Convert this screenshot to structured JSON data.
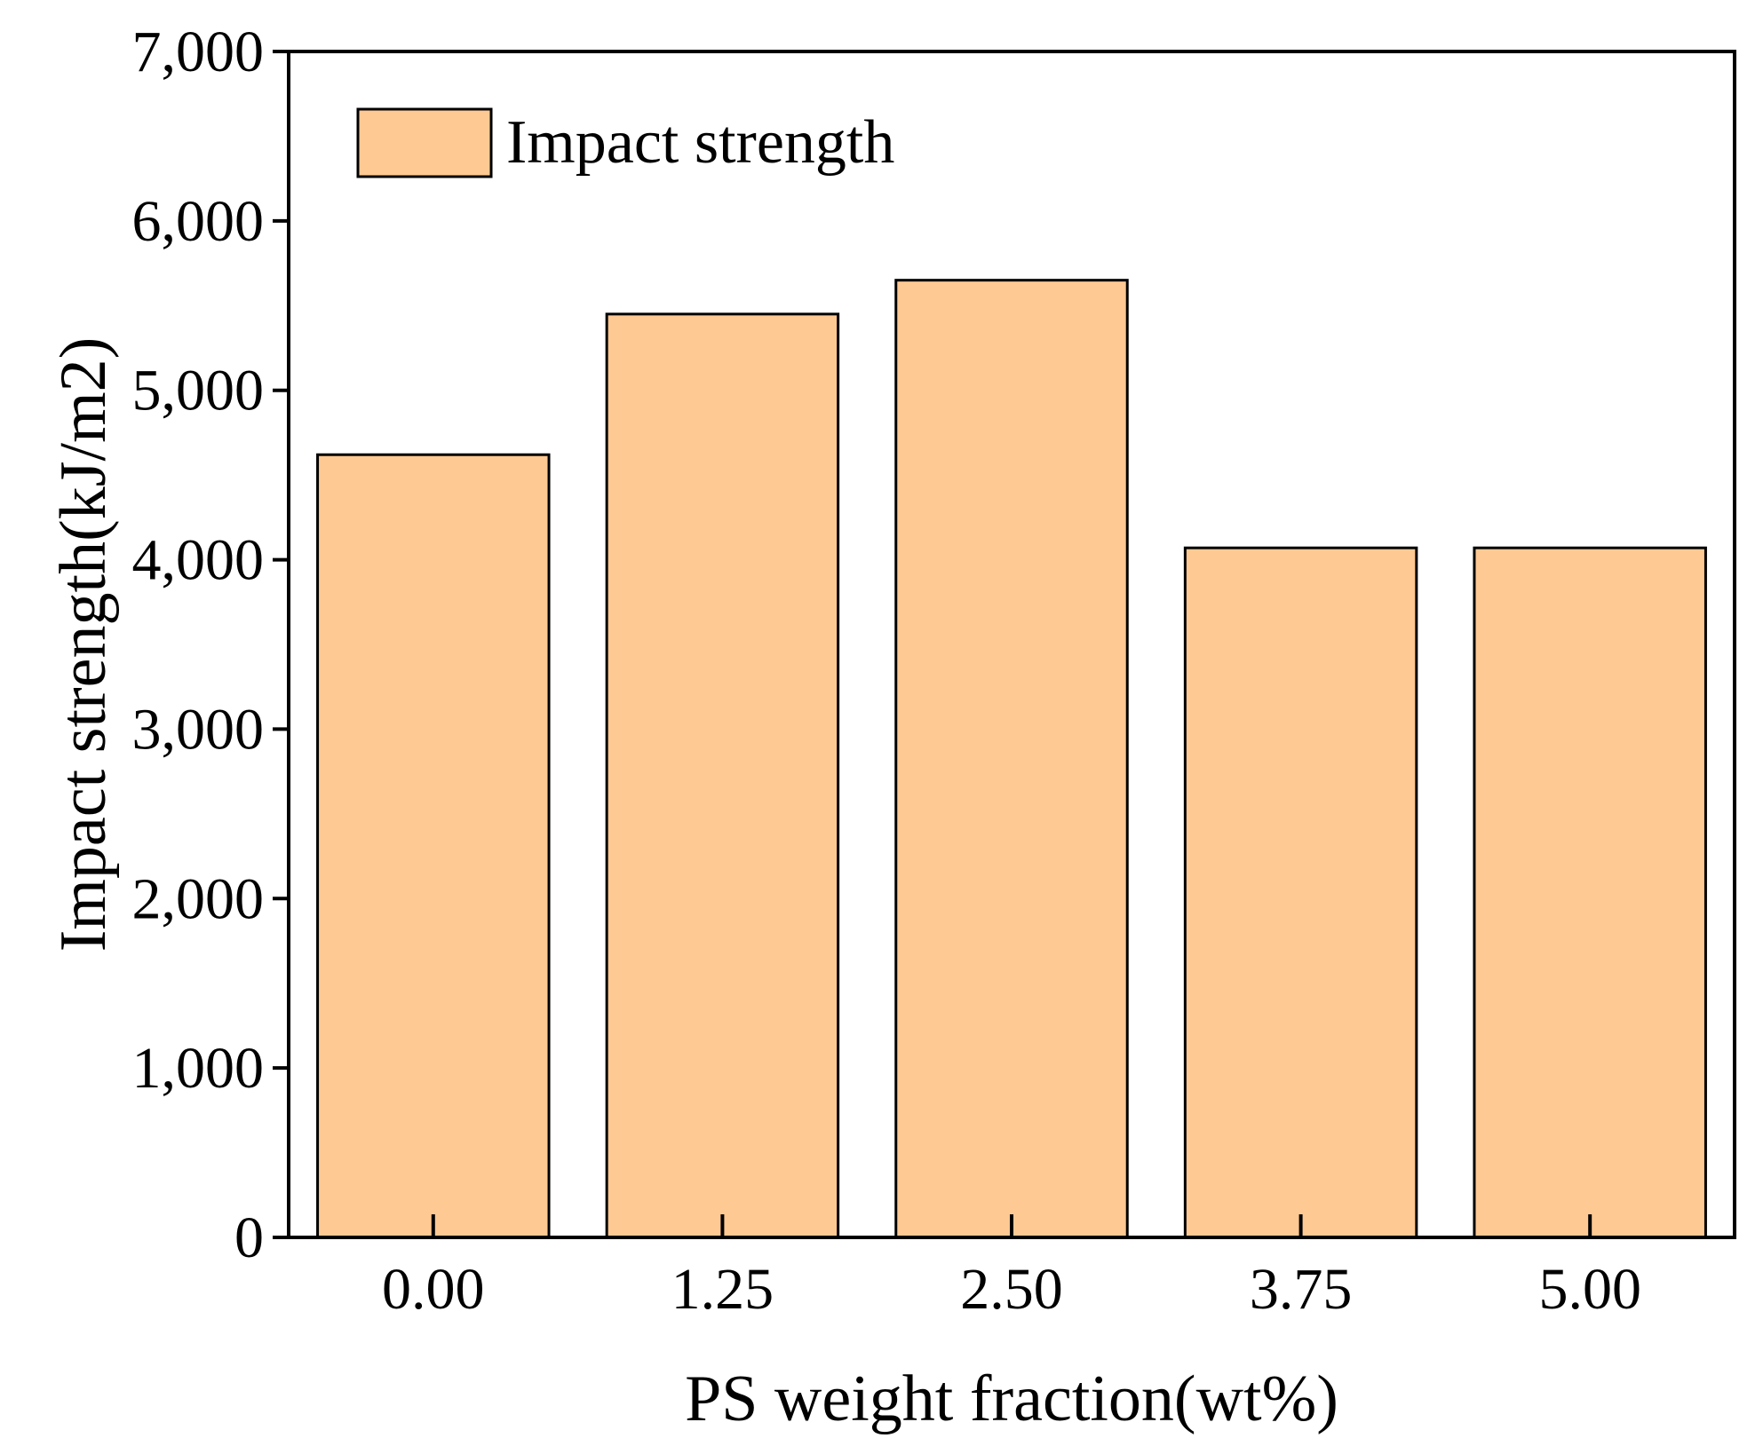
{
  "chart_data": {
    "type": "bar",
    "title": "",
    "xlabel": "PS weight fraction(wt%)",
    "ylabel": "Impact strength(kJ/m2)",
    "categories": [
      "0.00",
      "1.25",
      "2.50",
      "3.75",
      "5.00"
    ],
    "series": [
      {
        "name": "Impact strength",
        "values": [
          4620,
          5450,
          5650,
          4070,
          4070
        ]
      }
    ],
    "ylim": [
      0,
      7000
    ],
    "yticks": [
      0,
      1000,
      2000,
      3000,
      4000,
      5000,
      6000,
      7000
    ],
    "ytick_labels": [
      "0",
      "1,000",
      "2,000",
      "3,000",
      "4,000",
      "5,000",
      "6,000",
      "7,000"
    ],
    "grid": false,
    "legend_position": "top-left",
    "colors": {
      "bar_fill": "#FFC993",
      "bar_stroke": "#000000",
      "axis": "#000000"
    }
  }
}
